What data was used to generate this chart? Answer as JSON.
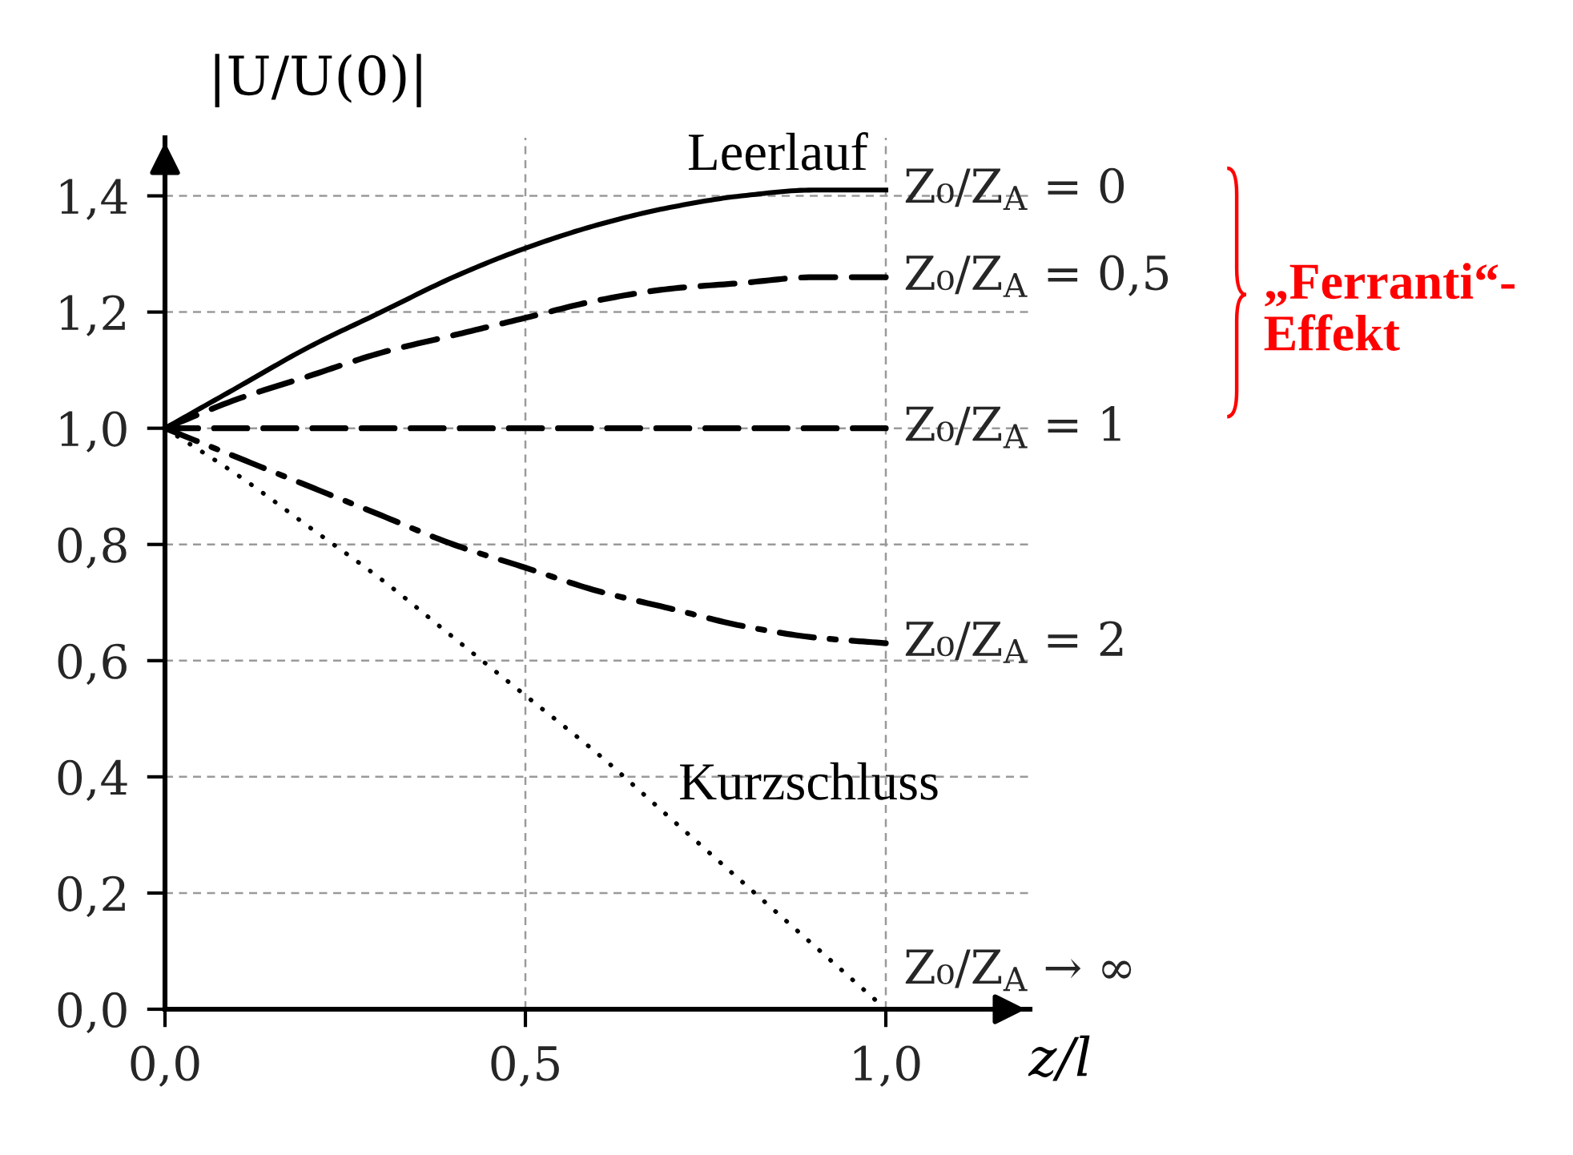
{
  "chart_data": {
    "type": "line",
    "xlabel": "z/l",
    "ylabel": "|U/U(0)|",
    "x": [
      0,
      0.1,
      0.2,
      0.3,
      0.4,
      0.5,
      0.6,
      0.7,
      0.8,
      0.9,
      1.0
    ],
    "xlim": [
      0,
      1.2
    ],
    "ylim": [
      0,
      1.5
    ],
    "xticks": [
      {
        "value": 0,
        "label": "0,0"
      },
      {
        "value": 0.5,
        "label": "0,5"
      },
      {
        "value": 1.0,
        "label": "1,0"
      }
    ],
    "yticks": [
      {
        "value": 0,
        "label": "0,0"
      },
      {
        "value": 0.2,
        "label": "0,2"
      },
      {
        "value": 0.4,
        "label": "0,4"
      },
      {
        "value": 0.6,
        "label": "0,6"
      },
      {
        "value": 0.8,
        "label": "0,8"
      },
      {
        "value": 1.0,
        "label": "1,0"
      },
      {
        "value": 1.2,
        "label": "1,2"
      },
      {
        "value": 1.4,
        "label": "1,4"
      }
    ],
    "grid": true,
    "legend": false,
    "series": [
      {
        "name": "Z₀/Z$_{A}$ = 0",
        "color": "#000000",
        "line_style": "solid",
        "values": [
          1.0,
          1.07,
          1.14,
          1.2,
          1.26,
          1.31,
          1.35,
          1.38,
          1.4,
          1.41,
          1.41
        ]
      },
      {
        "name": "Z₀/Z$_{A}$ = 0,5",
        "color": "#000000",
        "line_style": "dashed",
        "values": [
          1.0,
          1.05,
          1.09,
          1.13,
          1.16,
          1.19,
          1.22,
          1.24,
          1.25,
          1.26,
          1.26
        ]
      },
      {
        "name": "Z₀/Z$_{A}$ = 1",
        "color": "#000000",
        "line_style": "dashed",
        "values": [
          1.0,
          1.0,
          1.0,
          1.0,
          1.0,
          1.0,
          1.0,
          1.0,
          1.0,
          1.0,
          1.0
        ]
      },
      {
        "name": "Z₀/Z$_{A}$ = 2",
        "color": "#000000",
        "line_style": "dashdot",
        "values": [
          1.0,
          0.95,
          0.9,
          0.85,
          0.8,
          0.76,
          0.72,
          0.69,
          0.66,
          0.64,
          0.63
        ]
      },
      {
        "name": "Z₀/Z$_{A}$ → ∞",
        "color": "#000000",
        "line_style": "dotted",
        "values": [
          1.0,
          0.92,
          0.83,
          0.74,
          0.64,
          0.54,
          0.44,
          0.33,
          0.22,
          0.11,
          0.0
        ]
      }
    ],
    "annotations": [
      {
        "text": "Leerlauf",
        "x": 1.0,
        "y": 1.41
      },
      {
        "text": "Kurzschluss",
        "x": 0.7,
        "y": 0.33
      },
      "„Ferranti“-\nEffekt"
    ]
  }
}
